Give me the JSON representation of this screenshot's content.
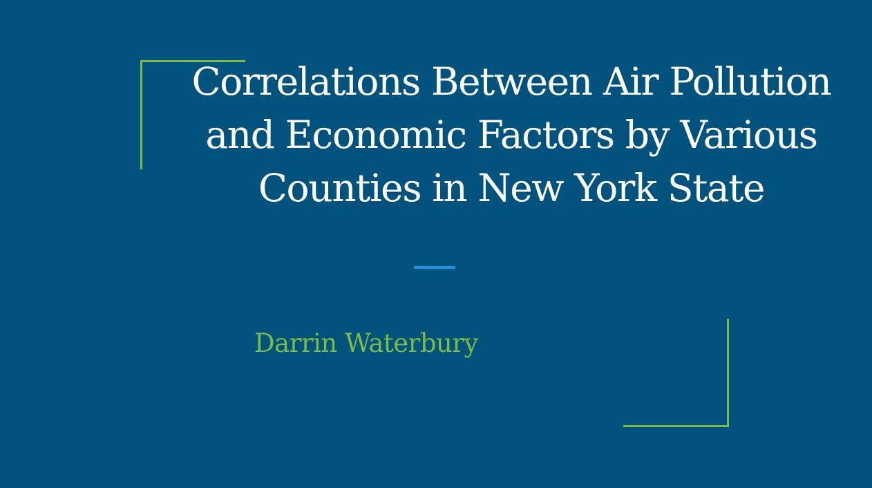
{
  "slide": {
    "title": "Correlations Between Air Pollution and Economic Factors by Various Counties in New York State",
    "subtitle": "Darrin Waterbury"
  },
  "colors": {
    "background": "#01527d",
    "title_text": "#ffffff",
    "subtitle_text": "#7cbb45",
    "bracket": "#7cbb45",
    "accent_bar": "#1d94e4"
  }
}
